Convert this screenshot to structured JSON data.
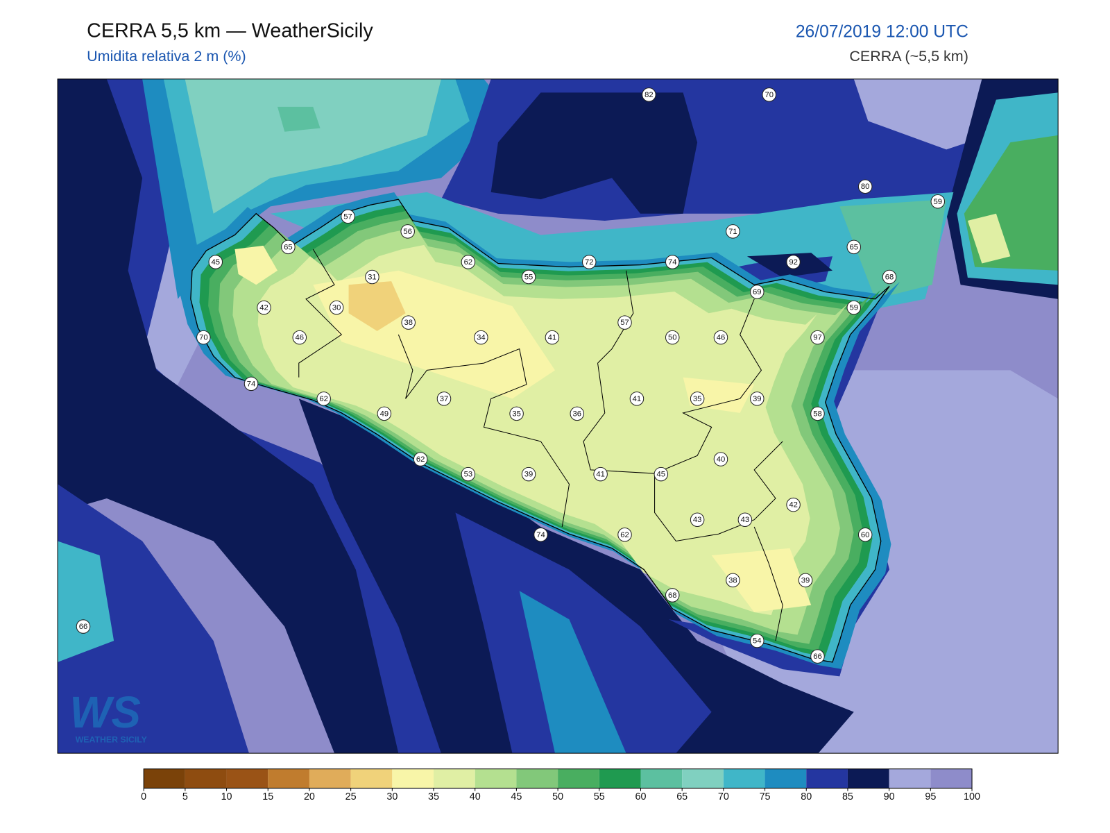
{
  "header": {
    "title": "CERRA 5,5 km — WeatherSicily",
    "subtitle": "Umidita relativa 2 m (%)",
    "date": "26/07/2019 12:00 UTC",
    "source": "CERRA (~5,5 km)"
  },
  "logo": {
    "mark": "WS",
    "name": "WEATHER SICILY"
  },
  "stations": [
    82,
    70,
    80,
    59,
    57,
    56,
    71,
    65,
    65,
    45,
    62,
    72,
    74,
    92,
    55,
    68,
    31,
    69,
    42,
    30,
    59,
    38,
    34,
    41,
    57,
    50,
    46,
    97,
    70,
    46,
    74,
    62,
    37,
    41,
    35,
    39,
    49,
    35,
    36,
    58,
    40,
    62,
    53,
    39,
    41,
    45,
    42,
    43,
    43,
    60,
    74,
    62,
    38,
    39,
    68,
    54,
    66,
    66
  ],
  "colorbar": {
    "ticks": [
      0,
      5,
      10,
      15,
      20,
      25,
      30,
      35,
      40,
      45,
      50,
      55,
      60,
      65,
      70,
      75,
      80,
      85,
      90,
      95,
      100
    ],
    "colors": [
      "#7a4209",
      "#8e4c10",
      "#9a5316",
      "#c07c2e",
      "#e0ac5a",
      "#f0d27a",
      "#f8f5a8",
      "#e0efa4",
      "#b4e090",
      "#82c87a",
      "#49ae60",
      "#1f9a50",
      "#5cc0a0",
      "#80d0c0",
      "#40b6c8",
      "#1e8cc0",
      "#2436a0",
      "#0c1a55",
      "#a4a8dc",
      "#8e8cca"
    ]
  }
}
